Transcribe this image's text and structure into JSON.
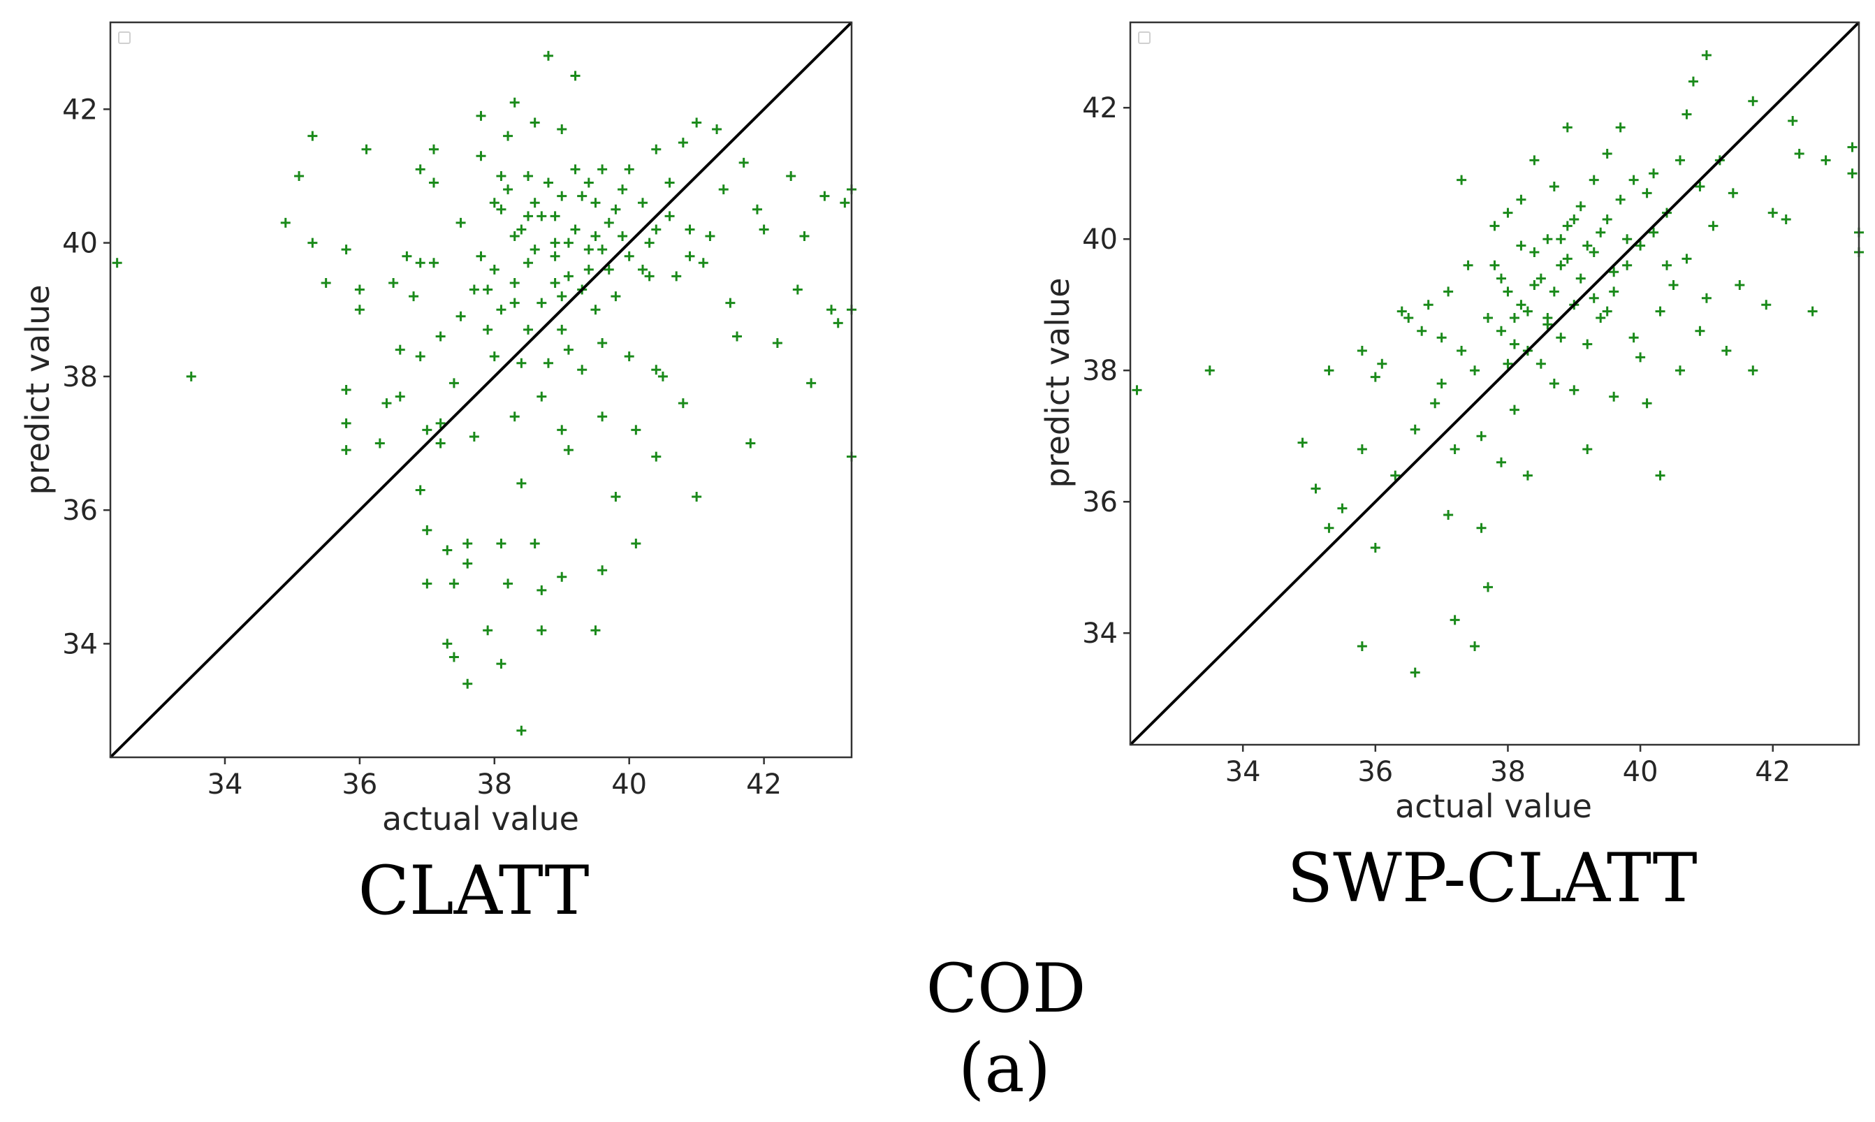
{
  "figure": {
    "group_label": "COD",
    "panel_label": "(a)"
  },
  "chart_data": [
    {
      "type": "scatter",
      "name": "CLATT",
      "caption": "CLATT",
      "xlabel": "actual value",
      "ylabel": "predict value",
      "xlim": [
        32.3,
        43.3
      ],
      "ylim": [
        32.3,
        43.3
      ],
      "xticks": [
        "34",
        "36",
        "38",
        "40",
        "42"
      ],
      "yticks": [
        "34",
        "36",
        "38",
        "40",
        "42"
      ],
      "marker": "+",
      "marker_color": "#1a8a1a",
      "reference_line": "y = x",
      "line_color": "#000000",
      "legend": "top-left (empty)",
      "points": [
        [
          32.4,
          39.7
        ],
        [
          33.5,
          38.0
        ],
        [
          34.9,
          40.3
        ],
        [
          35.1,
          41.0
        ],
        [
          35.3,
          41.6
        ],
        [
          35.3,
          40.0
        ],
        [
          35.5,
          39.4
        ],
        [
          35.8,
          39.9
        ],
        [
          35.8,
          37.8
        ],
        [
          35.8,
          37.3
        ],
        [
          35.8,
          36.9
        ],
        [
          36.0,
          39.3
        ],
        [
          36.0,
          39.0
        ],
        [
          36.1,
          41.4
        ],
        [
          36.3,
          37.0
        ],
        [
          36.4,
          37.6
        ],
        [
          36.5,
          39.4
        ],
        [
          36.6,
          37.7
        ],
        [
          36.6,
          38.4
        ],
        [
          36.7,
          39.8
        ],
        [
          36.8,
          39.2
        ],
        [
          36.9,
          39.7
        ],
        [
          36.9,
          38.3
        ],
        [
          36.9,
          41.1
        ],
        [
          36.9,
          36.3
        ],
        [
          37.0,
          37.2
        ],
        [
          37.0,
          35.7
        ],
        [
          37.0,
          34.9
        ],
        [
          37.1,
          41.4
        ],
        [
          37.1,
          40.9
        ],
        [
          37.1,
          39.7
        ],
        [
          37.2,
          38.6
        ],
        [
          37.2,
          37.3
        ],
        [
          37.2,
          37.0
        ],
        [
          37.3,
          35.4
        ],
        [
          37.3,
          34.0
        ],
        [
          37.4,
          33.8
        ],
        [
          37.4,
          34.9
        ],
        [
          37.4,
          37.9
        ],
        [
          37.5,
          38.9
        ],
        [
          37.5,
          40.3
        ],
        [
          37.6,
          35.5
        ],
        [
          37.6,
          35.2
        ],
        [
          37.6,
          33.4
        ],
        [
          37.7,
          37.1
        ],
        [
          37.7,
          39.3
        ],
        [
          37.8,
          41.3
        ],
        [
          37.8,
          41.9
        ],
        [
          37.9,
          39.3
        ],
        [
          37.9,
          38.7
        ],
        [
          37.9,
          34.2
        ],
        [
          38.0,
          40.6
        ],
        [
          38.0,
          39.6
        ],
        [
          38.0,
          38.3
        ],
        [
          38.1,
          41.0
        ],
        [
          38.1,
          40.5
        ],
        [
          38.1,
          35.5
        ],
        [
          38.1,
          33.7
        ],
        [
          38.2,
          41.6
        ],
        [
          38.2,
          34.9
        ],
        [
          38.3,
          39.1
        ],
        [
          38.3,
          40.1
        ],
        [
          38.3,
          42.1
        ],
        [
          38.3,
          37.4
        ],
        [
          38.4,
          38.2
        ],
        [
          38.4,
          36.4
        ],
        [
          38.4,
          32.7
        ],
        [
          38.5,
          41.0
        ],
        [
          38.5,
          40.4
        ],
        [
          38.5,
          39.7
        ],
        [
          38.6,
          40.6
        ],
        [
          38.6,
          41.8
        ],
        [
          38.6,
          35.5
        ],
        [
          38.7,
          39.1
        ],
        [
          38.7,
          37.7
        ],
        [
          38.7,
          34.8
        ],
        [
          38.7,
          34.2
        ],
        [
          38.8,
          42.8
        ],
        [
          38.8,
          40.9
        ],
        [
          38.8,
          38.2
        ],
        [
          38.9,
          40.4
        ],
        [
          38.9,
          39.4
        ],
        [
          38.9,
          39.8
        ],
        [
          39.0,
          41.7
        ],
        [
          39.0,
          40.7
        ],
        [
          39.0,
          38.7
        ],
        [
          39.0,
          37.2
        ],
        [
          39.0,
          35.0
        ],
        [
          39.1,
          40.0
        ],
        [
          39.1,
          38.4
        ],
        [
          39.1,
          36.9
        ],
        [
          39.2,
          42.5
        ],
        [
          39.2,
          41.1
        ],
        [
          39.2,
          40.2
        ],
        [
          39.3,
          39.3
        ],
        [
          39.3,
          38.1
        ],
        [
          39.4,
          40.9
        ],
        [
          39.4,
          39.6
        ],
        [
          39.4,
          39.9
        ],
        [
          39.5,
          40.6
        ],
        [
          39.5,
          39.0
        ],
        [
          39.5,
          34.2
        ],
        [
          39.6,
          41.1
        ],
        [
          39.6,
          38.5
        ],
        [
          39.6,
          37.4
        ],
        [
          39.6,
          35.1
        ],
        [
          39.7,
          40.3
        ],
        [
          39.7,
          39.6
        ],
        [
          39.8,
          39.2
        ],
        [
          39.8,
          36.2
        ],
        [
          39.9,
          40.8
        ],
        [
          39.9,
          40.1
        ],
        [
          40.0,
          41.1
        ],
        [
          40.0,
          39.8
        ],
        [
          40.0,
          38.3
        ],
        [
          40.1,
          37.2
        ],
        [
          40.1,
          35.5
        ],
        [
          40.2,
          40.6
        ],
        [
          40.2,
          39.6
        ],
        [
          40.3,
          39.5
        ],
        [
          40.4,
          41.4
        ],
        [
          40.4,
          40.2
        ],
        [
          40.4,
          38.1
        ],
        [
          40.4,
          36.8
        ],
        [
          40.5,
          38.0
        ],
        [
          40.6,
          40.9
        ],
        [
          40.6,
          40.4
        ],
        [
          40.7,
          39.5
        ],
        [
          40.8,
          37.6
        ],
        [
          40.8,
          41.5
        ],
        [
          40.9,
          40.2
        ],
        [
          40.9,
          39.8
        ],
        [
          41.0,
          41.8
        ],
        [
          41.0,
          36.2
        ],
        [
          41.1,
          39.7
        ],
        [
          41.2,
          40.1
        ],
        [
          41.3,
          41.7
        ],
        [
          41.4,
          40.8
        ],
        [
          41.5,
          39.1
        ],
        [
          41.6,
          38.6
        ],
        [
          41.7,
          41.2
        ],
        [
          41.8,
          37.0
        ],
        [
          41.9,
          40.5
        ],
        [
          42.0,
          40.2
        ],
        [
          42.2,
          38.5
        ],
        [
          42.4,
          41.0
        ],
        [
          42.5,
          39.3
        ],
        [
          42.6,
          40.1
        ],
        [
          42.7,
          37.9
        ],
        [
          42.9,
          40.7
        ],
        [
          43.0,
          39.0
        ],
        [
          43.1,
          38.8
        ],
        [
          43.2,
          40.6
        ],
        [
          43.3,
          40.8
        ],
        [
          43.3,
          39.0
        ],
        [
          43.3,
          36.8
        ],
        [
          38.2,
          40.8
        ],
        [
          38.6,
          39.9
        ],
        [
          39.1,
          39.5
        ],
        [
          38.4,
          40.2
        ],
        [
          39.3,
          40.7
        ],
        [
          38.9,
          40.0
        ],
        [
          39.6,
          39.9
        ],
        [
          38.7,
          40.4
        ],
        [
          38.1,
          39.0
        ],
        [
          39.8,
          40.5
        ],
        [
          37.8,
          39.8
        ],
        [
          40.3,
          40.0
        ],
        [
          38.5,
          38.7
        ],
        [
          39.0,
          39.2
        ],
        [
          39.5,
          40.1
        ],
        [
          38.3,
          39.4
        ]
      ]
    },
    {
      "type": "scatter",
      "name": "SWP-CLATT",
      "caption": "SWP-CLATT",
      "xlabel": "actual value",
      "ylabel": "predict value",
      "xlim": [
        32.3,
        43.3
      ],
      "ylim": [
        32.3,
        43.3
      ],
      "xticks": [
        "34",
        "36",
        "38",
        "40",
        "42"
      ],
      "yticks": [
        "34",
        "36",
        "38",
        "40",
        "42"
      ],
      "marker": "+",
      "marker_color": "#1a8a1a",
      "reference_line": "y = x",
      "line_color": "#000000",
      "legend": "top-left (empty)",
      "points": [
        [
          32.4,
          37.7
        ],
        [
          33.5,
          38.0
        ],
        [
          34.9,
          36.9
        ],
        [
          35.1,
          36.2
        ],
        [
          35.3,
          35.6
        ],
        [
          35.3,
          38.0
        ],
        [
          35.5,
          35.9
        ],
        [
          35.8,
          38.3
        ],
        [
          35.8,
          36.8
        ],
        [
          35.8,
          33.8
        ],
        [
          36.0,
          35.3
        ],
        [
          36.0,
          37.9
        ],
        [
          36.1,
          38.1
        ],
        [
          36.3,
          36.4
        ],
        [
          36.4,
          38.9
        ],
        [
          36.5,
          38.8
        ],
        [
          36.6,
          33.4
        ],
        [
          36.6,
          37.1
        ],
        [
          36.7,
          38.6
        ],
        [
          36.8,
          39.0
        ],
        [
          36.9,
          37.5
        ],
        [
          37.0,
          37.8
        ],
        [
          37.0,
          38.5
        ],
        [
          37.1,
          39.2
        ],
        [
          37.1,
          35.8
        ],
        [
          37.2,
          36.8
        ],
        [
          37.2,
          34.2
        ],
        [
          37.3,
          40.9
        ],
        [
          37.3,
          38.3
        ],
        [
          37.4,
          39.6
        ],
        [
          37.5,
          38.0
        ],
        [
          37.5,
          33.8
        ],
        [
          37.6,
          37.0
        ],
        [
          37.6,
          35.6
        ],
        [
          37.7,
          34.7
        ],
        [
          37.7,
          38.8
        ],
        [
          37.8,
          39.6
        ],
        [
          37.8,
          40.2
        ],
        [
          37.9,
          38.6
        ],
        [
          37.9,
          36.6
        ],
        [
          38.0,
          40.4
        ],
        [
          38.0,
          39.2
        ],
        [
          38.1,
          38.8
        ],
        [
          38.1,
          37.4
        ],
        [
          38.2,
          40.6
        ],
        [
          38.2,
          39.9
        ],
        [
          38.3,
          38.3
        ],
        [
          38.3,
          36.4
        ],
        [
          38.4,
          41.2
        ],
        [
          38.4,
          39.3
        ],
        [
          38.5,
          38.1
        ],
        [
          38.6,
          40.0
        ],
        [
          38.6,
          38.8
        ],
        [
          38.7,
          37.8
        ],
        [
          38.7,
          40.8
        ],
        [
          38.8,
          39.6
        ],
        [
          38.8,
          38.5
        ],
        [
          38.9,
          41.7
        ],
        [
          38.9,
          40.2
        ],
        [
          39.0,
          39.0
        ],
        [
          39.0,
          37.7
        ],
        [
          39.1,
          40.5
        ],
        [
          39.1,
          39.4
        ],
        [
          39.2,
          38.4
        ],
        [
          39.2,
          36.8
        ],
        [
          39.3,
          40.9
        ],
        [
          39.3,
          39.8
        ],
        [
          39.4,
          38.8
        ],
        [
          39.5,
          41.3
        ],
        [
          39.5,
          40.3
        ],
        [
          39.6,
          39.2
        ],
        [
          39.6,
          37.6
        ],
        [
          39.7,
          41.7
        ],
        [
          39.7,
          40.6
        ],
        [
          39.8,
          39.6
        ],
        [
          39.9,
          38.5
        ],
        [
          39.9,
          40.9
        ],
        [
          40.0,
          39.9
        ],
        [
          40.0,
          38.2
        ],
        [
          40.1,
          37.5
        ],
        [
          40.2,
          41.0
        ],
        [
          40.2,
          40.1
        ],
        [
          40.3,
          36.4
        ],
        [
          40.3,
          38.9
        ],
        [
          40.4,
          40.4
        ],
        [
          40.5,
          39.3
        ],
        [
          40.6,
          41.2
        ],
        [
          40.6,
          38.0
        ],
        [
          40.7,
          41.9
        ],
        [
          40.7,
          39.7
        ],
        [
          40.8,
          42.4
        ],
        [
          40.9,
          40.8
        ],
        [
          40.9,
          38.6
        ],
        [
          41.0,
          42.8
        ],
        [
          41.0,
          39.1
        ],
        [
          41.1,
          40.2
        ],
        [
          41.2,
          41.2
        ],
        [
          41.3,
          38.3
        ],
        [
          41.4,
          40.7
        ],
        [
          41.5,
          39.3
        ],
        [
          41.7,
          38.0
        ],
        [
          41.7,
          42.1
        ],
        [
          41.9,
          39.0
        ],
        [
          42.0,
          40.4
        ],
        [
          42.2,
          40.3
        ],
        [
          42.3,
          41.8
        ],
        [
          42.4,
          41.3
        ],
        [
          42.6,
          38.9
        ],
        [
          42.8,
          41.2
        ],
        [
          43.2,
          41.4
        ],
        [
          43.2,
          41.0
        ],
        [
          43.3,
          40.1
        ],
        [
          43.3,
          39.8
        ],
        [
          38.2,
          39.0
        ],
        [
          38.5,
          39.4
        ],
        [
          38.9,
          39.7
        ],
        [
          39.3,
          39.1
        ],
        [
          38.6,
          38.7
        ],
        [
          39.4,
          40.1
        ],
        [
          38.1,
          38.4
        ],
        [
          39.8,
          40.0
        ],
        [
          38.4,
          39.8
        ],
        [
          39.0,
          40.3
        ],
        [
          38.7,
          39.2
        ],
        [
          39.6,
          39.5
        ],
        [
          38.0,
          38.1
        ],
        [
          39.2,
          39.9
        ],
        [
          37.9,
          39.4
        ],
        [
          40.1,
          40.7
        ],
        [
          38.3,
          38.9
        ],
        [
          39.5,
          38.9
        ],
        [
          38.8,
          40.0
        ],
        [
          40.4,
          39.6
        ]
      ]
    }
  ]
}
